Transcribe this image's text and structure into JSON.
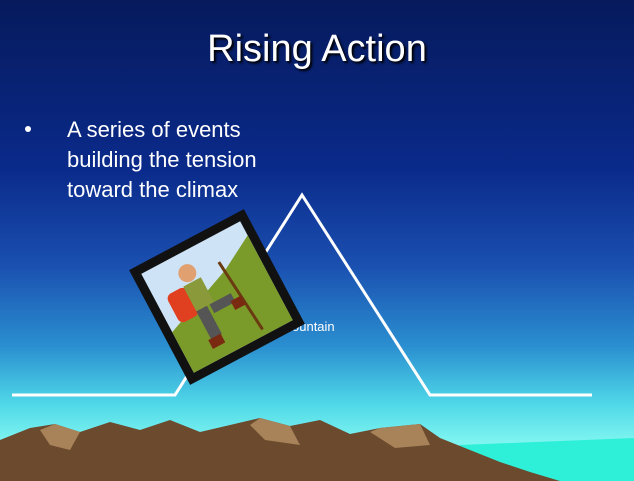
{
  "slide": {
    "title": "Rising Action",
    "bullets": [
      "A series of events building the tension toward the climax"
    ],
    "diagram_label": "ountain"
  }
}
